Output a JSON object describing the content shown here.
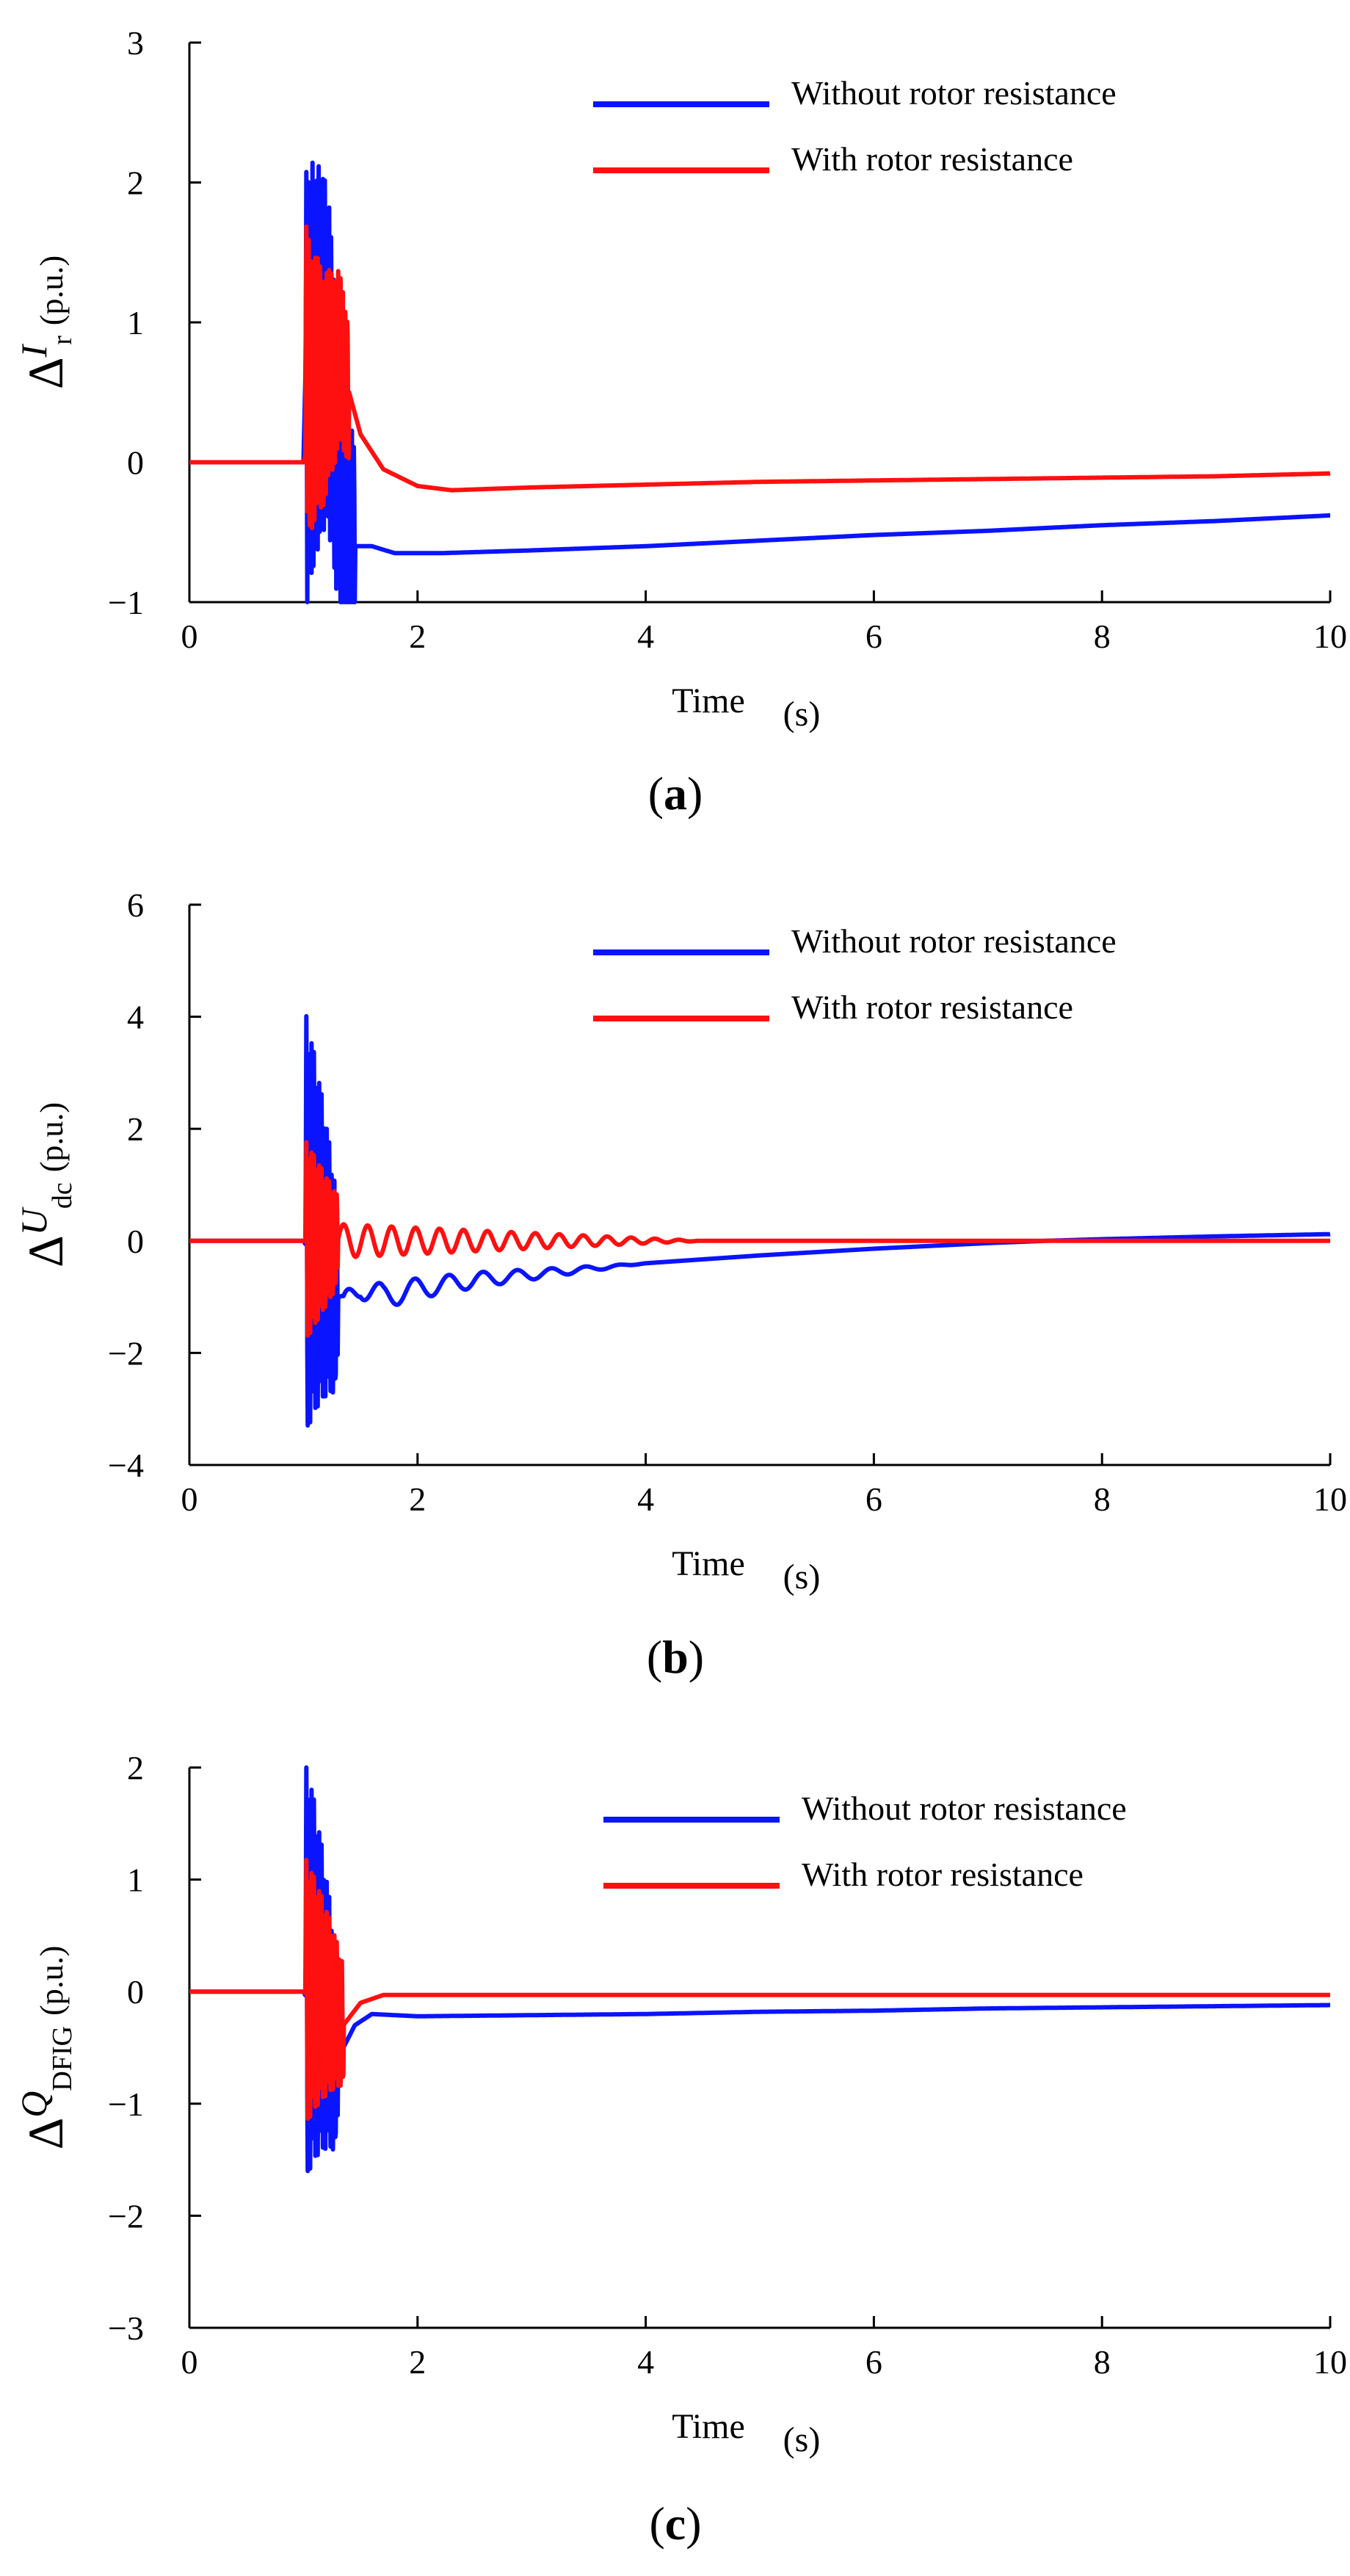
{
  "figure_captions": [
    "(a)",
    "(b)",
    "(c)"
  ],
  "colors": {
    "without": "#0a14ff",
    "with": "#ff1010",
    "axis": "#000000"
  },
  "chart_data": [
    {
      "id": "a",
      "type": "line",
      "caption_letter": "a",
      "ylabel": {
        "delta": "Δ",
        "symbol": "I",
        "subscript": "r",
        "unit": "(p.u.)"
      },
      "xlabel": {
        "word": "Time",
        "unit": "(s)"
      },
      "xlim": [
        0,
        10
      ],
      "ylim": [
        -1,
        3
      ],
      "xticks": [
        0,
        2,
        4,
        6,
        8,
        10
      ],
      "yticks": [
        -1,
        0,
        1,
        2,
        3
      ],
      "ytick_labels": [
        "−1",
        "0",
        "1",
        "2",
        "3"
      ],
      "legend": [
        "Without rotor resistance",
        "With rotor resistance"
      ],
      "series": [
        {
          "name": "Without rotor resistance",
          "color_key": "without",
          "x": [
            0,
            1.0,
            1.05,
            1.2,
            1.3,
            1.4,
            1.6,
            1.8,
            2.2,
            3,
            4,
            5,
            6,
            7,
            8,
            9,
            10
          ],
          "y": [
            0,
            0,
            1.8,
            1.2,
            -0.3,
            -0.6,
            -0.6,
            -0.65,
            -0.65,
            -0.63,
            -0.6,
            -0.56,
            -0.52,
            -0.49,
            -0.45,
            -0.42,
            -0.38
          ],
          "osc": {
            "t0": 1.02,
            "t1": 1.45,
            "amp": 1.6,
            "center": 0.5,
            "freq": 55
          }
        },
        {
          "name": "With rotor resistance",
          "color_key": "with",
          "x": [
            0,
            1.0,
            1.3,
            1.5,
            1.7,
            2.0,
            2.3,
            3,
            4,
            5,
            6,
            7,
            8,
            9,
            10
          ],
          "y": [
            0,
            0,
            0.8,
            0.2,
            -0.05,
            -0.17,
            -0.2,
            -0.18,
            -0.16,
            -0.14,
            -0.13,
            -0.12,
            -0.11,
            -0.1,
            -0.08
          ],
          "osc": {
            "t0": 1.02,
            "t1": 1.4,
            "amp": 1.1,
            "center": 0.6,
            "freq": 50
          }
        }
      ]
    },
    {
      "id": "b",
      "type": "line",
      "caption_letter": "b",
      "ylabel": {
        "delta": "Δ",
        "symbol": "U",
        "subscript": "dc",
        "unit": "(p.u.)"
      },
      "xlabel": {
        "word": "Time",
        "unit": "(s)"
      },
      "xlim": [
        0,
        10
      ],
      "ylim": [
        -4,
        6
      ],
      "xticks": [
        0,
        2,
        4,
        6,
        8,
        10
      ],
      "yticks": [
        -4,
        -2,
        0,
        2,
        4,
        6
      ],
      "ytick_labels": [
        "−4",
        "−2",
        "0",
        "2",
        "4",
        "6"
      ],
      "legend": [
        "Without rotor resistance",
        "With rotor resistance"
      ],
      "series": [
        {
          "name": "Without rotor resistance",
          "color_key": "without",
          "x": [
            0,
            1.0,
            1.35,
            1.5,
            1.7,
            2.0,
            2.5,
            3,
            3.5,
            4,
            4.5,
            5,
            5.5,
            6,
            6.5,
            7,
            7.5,
            8,
            9,
            10
          ],
          "y": [
            0,
            0,
            -1.2,
            -0.8,
            -1.0,
            -0.85,
            -0.7,
            -0.6,
            -0.5,
            -0.4,
            -0.33,
            -0.26,
            -0.2,
            -0.14,
            -0.09,
            -0.04,
            0.0,
            0.03,
            0.08,
            0.12
          ],
          "osc": {
            "t0": 1.02,
            "t1": 1.3,
            "amp": 3.8,
            "center": 0.3,
            "freq": 45
          },
          "ripple": {
            "t0": 1.3,
            "t1": 4.0,
            "amp": 0.25,
            "period": 0.3
          }
        },
        {
          "name": "With rotor resistance",
          "color_key": "with",
          "x": [
            0,
            1.0,
            1.35,
            10
          ],
          "y": [
            0,
            0,
            0,
            0
          ],
          "osc": {
            "t0": 1.02,
            "t1": 1.3,
            "amp": 1.8,
            "center": 0.0,
            "freq": 45
          },
          "ripple": {
            "t0": 1.3,
            "t1": 4.5,
            "amp": 0.3,
            "period": 0.21
          }
        }
      ]
    },
    {
      "id": "c",
      "type": "line",
      "caption_letter": "c",
      "ylabel": {
        "delta": "Δ",
        "symbol": "Q",
        "subscript": "DFIG",
        "unit": "(p.u.)"
      },
      "xlabel": {
        "word": "Time",
        "unit": "(s)"
      },
      "xlim": [
        0,
        10
      ],
      "ylim": [
        -3,
        2
      ],
      "xticks": [
        0,
        2,
        4,
        6,
        8,
        10
      ],
      "yticks": [
        -3,
        -2,
        -1,
        0,
        1,
        2
      ],
      "ytick_labels": [
        "−3",
        "−2",
        "−1",
        "0",
        "1",
        "2"
      ],
      "legend": [
        "Without rotor resistance",
        "With rotor resistance"
      ],
      "series": [
        {
          "name": "Without rotor resistance",
          "color_key": "without",
          "x": [
            0,
            1.0,
            1.3,
            1.45,
            1.6,
            2,
            3,
            4,
            5,
            6,
            7,
            8,
            9,
            10
          ],
          "y": [
            0,
            0,
            -0.6,
            -0.3,
            -0.2,
            -0.22,
            -0.21,
            -0.2,
            -0.18,
            -0.17,
            -0.15,
            -0.14,
            -0.13,
            -0.12
          ],
          "osc": {
            "t0": 1.02,
            "t1": 1.3,
            "amp": 1.9,
            "center": 0.2,
            "freq": 45
          }
        },
        {
          "name": "With rotor resistance",
          "color_key": "with",
          "x": [
            0,
            1.0,
            1.35,
            1.5,
            1.7,
            2,
            3,
            4,
            5,
            6,
            7,
            8,
            9,
            10
          ],
          "y": [
            0,
            0,
            -0.3,
            -0.1,
            -0.03,
            -0.03,
            -0.03,
            -0.03,
            -0.03,
            -0.03,
            -0.03,
            -0.03,
            -0.03,
            -0.03
          ],
          "osc": {
            "t0": 1.02,
            "t1": 1.35,
            "amp": 1.2,
            "center": 0.0,
            "freq": 45
          }
        }
      ]
    }
  ]
}
